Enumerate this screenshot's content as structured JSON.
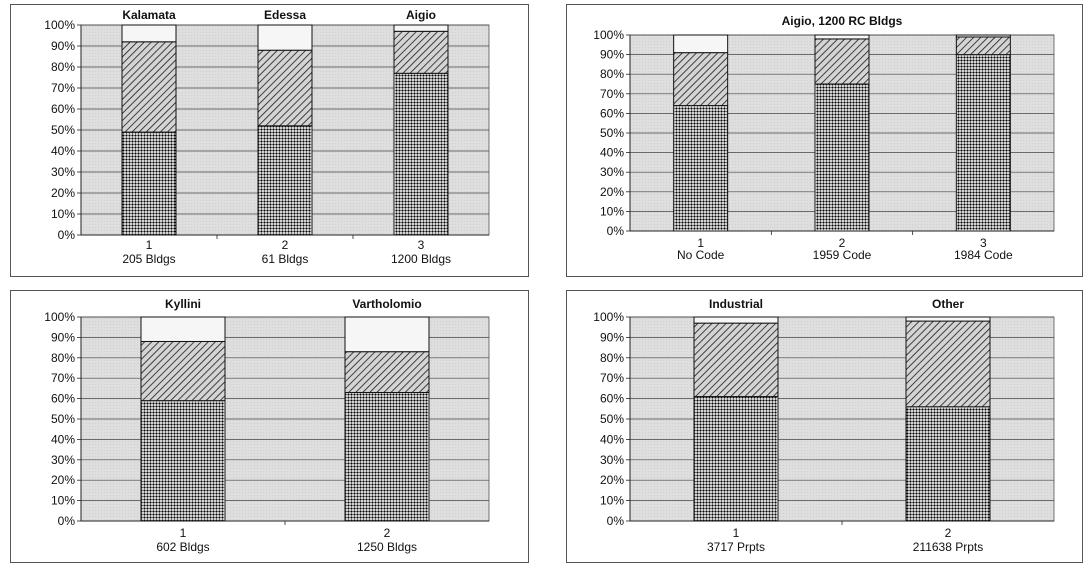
{
  "colors": {
    "plot_background": "#dedede",
    "gridline": "#444444",
    "bar_outline": "#111111",
    "bottom_segment_pattern": "dense-dot",
    "middle_segment_pattern": "diagonal-hatch",
    "top_segment_fill": "#f6f6f6"
  },
  "chart_data": [
    {
      "type": "bar",
      "stacked": true,
      "title": "",
      "ylim": [
        0,
        100
      ],
      "yticks": [
        "0%",
        "10%",
        "20%",
        "30%",
        "40%",
        "50%",
        "60%",
        "70%",
        "80%",
        "90%",
        "100%"
      ],
      "categories": [
        {
          "label": "1",
          "sublabel": "205 Bldgs",
          "header": "Kalamata"
        },
        {
          "label": "2",
          "sublabel": "61 Bldgs",
          "header": "Edessa"
        },
        {
          "label": "3",
          "sublabel": "1200 Bldgs",
          "header": "Aigio"
        }
      ],
      "series": [
        {
          "pattern": "dots",
          "values": [
            49,
            52,
            77
          ]
        },
        {
          "pattern": "hatch",
          "values": [
            43,
            36,
            20
          ]
        },
        {
          "pattern": "light",
          "values": [
            8,
            12,
            3
          ]
        }
      ],
      "grid": true,
      "legend": "none"
    },
    {
      "type": "bar",
      "stacked": true,
      "title": "Aigio, 1200 RC Bldgs",
      "ylim": [
        0,
        100
      ],
      "yticks": [
        "0%",
        "10%",
        "20%",
        "30%",
        "40%",
        "50%",
        "60%",
        "70%",
        "80%",
        "90%",
        "100%"
      ],
      "categories": [
        {
          "label": "1",
          "sublabel": "No Code",
          "header": ""
        },
        {
          "label": "2",
          "sublabel": "1959 Code",
          "header": ""
        },
        {
          "label": "3",
          "sublabel": "1984 Code",
          "header": ""
        }
      ],
      "series": [
        {
          "pattern": "dots",
          "values": [
            64,
            75,
            90
          ]
        },
        {
          "pattern": "hatch",
          "values": [
            27,
            23,
            9
          ]
        },
        {
          "pattern": "light",
          "values": [
            9,
            2,
            1
          ]
        }
      ],
      "grid": true,
      "legend": "none"
    },
    {
      "type": "bar",
      "stacked": true,
      "title": "",
      "ylim": [
        0,
        100
      ],
      "yticks": [
        "0%",
        "10%",
        "20%",
        "30%",
        "40%",
        "50%",
        "60%",
        "70%",
        "80%",
        "90%",
        "100%"
      ],
      "categories": [
        {
          "label": "1",
          "sublabel": "602 Bldgs",
          "header": "Kyllini"
        },
        {
          "label": "2",
          "sublabel": "1250 Bldgs",
          "header": "Vartholomio"
        }
      ],
      "series": [
        {
          "pattern": "dots",
          "values": [
            59,
            63
          ]
        },
        {
          "pattern": "hatch",
          "values": [
            29,
            20
          ]
        },
        {
          "pattern": "light",
          "values": [
            12,
            17
          ]
        }
      ],
      "grid": true,
      "legend": "none"
    },
    {
      "type": "bar",
      "stacked": true,
      "title": "",
      "ylim": [
        0,
        100
      ],
      "yticks": [
        "0%",
        "10%",
        "20%",
        "30%",
        "40%",
        "50%",
        "60%",
        "70%",
        "80%",
        "90%",
        "100%"
      ],
      "categories": [
        {
          "label": "1",
          "sublabel": "3717 Prpts",
          "header": "Industrial"
        },
        {
          "label": "2",
          "sublabel": "211638 Prpts",
          "header": "Other"
        }
      ],
      "series": [
        {
          "pattern": "dots",
          "values": [
            61,
            56
          ]
        },
        {
          "pattern": "hatch",
          "values": [
            36,
            42
          ]
        },
        {
          "pattern": "light",
          "values": [
            3,
            2
          ]
        }
      ],
      "grid": true,
      "legend": "none"
    }
  ]
}
